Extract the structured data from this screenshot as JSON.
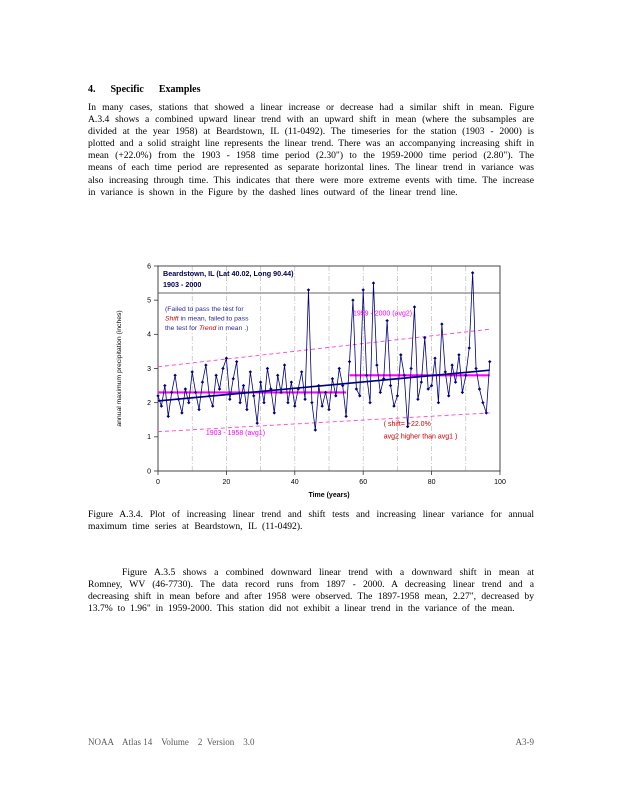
{
  "page": {
    "heading": "4.      Specific      Examples",
    "para1": "In many cases, stations that showed a linear increase or decrease had a similar shift in mean.  Figure A.3.4 shows a combined upward linear trend with an upward shift in mean (where the subsamples are divided at the year 1958) at Beardstown, IL (11-0492).  The timeseries for the station (1903 - 2000) is plotted and a solid straight line represents the linear trend.  There was an accompanying increasing shift in mean (+22.0%) from the 1903 - 1958 time period (2.30\") to the 1959-2000 time period (2.80\").  The means of each time period are represented as separate horizontal lines.  The linear trend in variance was also increasing through time.  This indicates that there were more extreme events with time.  The increase in variance is shown in the Figure by the dashed lines outward of the linear trend line.",
    "caption": "Figure A.3.4.  Plot of increasing linear trend and shift tests and increasing linear variance for annual maximum time series at Beardstown, IL (11-0492).",
    "para2": "Figure A.3.5 shows a combined downward linear trend with a downward shift in mean at Romney, WV (46-7730).  The data record runs from 1897 - 2000.  A decreasing linear trend and a decreasing shift in mean before and after 1958 were observed.  The 1897-1958 mean, 2.27\", decreased by 13.7% to 1.96\" in 1959-2000.  This station did not exhibit a linear trend in the variance of the mean.",
    "footer_left": "NOAA    Atlas 14    Volume    2  Version    3.0",
    "footer_right": "A3-9"
  },
  "chart_data": {
    "type": "line",
    "title": "Beardstown, IL  (Lat  40.02,  Long  90.44)",
    "subtitle": "1903 - 2000",
    "xlabel": "Time  (years)",
    "ylabel": "annual  maximum   precipitation   (inches)",
    "xlim": [
      0,
      100
    ],
    "ylim": [
      0,
      6
    ],
    "x_ticks": [
      0,
      20,
      40,
      60,
      80,
      100
    ],
    "y_ticks": [
      0,
      1,
      2,
      3,
      4,
      5,
      6
    ],
    "gridlines_x": [
      10,
      20,
      30,
      40,
      50,
      60,
      70,
      80,
      90
    ],
    "x_start": 0,
    "x_start_year": 1903,
    "series_values": [
      2.2,
      1.9,
      2.5,
      1.6,
      2.3,
      2.8,
      2.1,
      1.7,
      2.4,
      2.0,
      2.9,
      2.3,
      1.8,
      2.6,
      3.1,
      2.2,
      1.9,
      2.8,
      2.4,
      3.0,
      3.3,
      2.1,
      2.7,
      3.2,
      2.0,
      2.5,
      1.8,
      2.9,
      2.2,
      1.4,
      2.6,
      2.0,
      3.0,
      2.4,
      1.7,
      2.8,
      2.3,
      3.1,
      2.0,
      2.6,
      1.9,
      2.4,
      2.9,
      2.1,
      5.3,
      2.0,
      1.2,
      2.5,
      1.9,
      2.3,
      1.8,
      2.7,
      2.2,
      3.0,
      2.5,
      1.6,
      3.2,
      5.0,
      2.4,
      2.2,
      5.3,
      2.8,
      2.0,
      5.5,
      3.1,
      2.3,
      2.7,
      4.4,
      2.5,
      1.9,
      2.2,
      3.4,
      2.8,
      1.3,
      3.0,
      4.8,
      2.1,
      2.6,
      3.9,
      2.4,
      2.5,
      3.3,
      2.0,
      4.3,
      2.9,
      2.2,
      3.1,
      2.6,
      3.4,
      2.3,
      2.8,
      3.6,
      5.8,
      3.0,
      2.4,
      2.0,
      1.7,
      3.2
    ],
    "trend": {
      "x": [
        0,
        97
      ],
      "y": [
        2.05,
        2.95
      ]
    },
    "means": [
      {
        "label": "avg1",
        "x": [
          0,
          55
        ],
        "y": 2.3
      },
      {
        "label": "avg2",
        "x": [
          56,
          97
        ],
        "y": 2.8
      }
    ],
    "variance_band": {
      "upper": {
        "x": [
          0,
          97
        ],
        "y": [
          3.05,
          4.15
        ]
      },
      "lower": {
        "x": [
          0,
          97
        ],
        "y": [
          1.15,
          1.7
        ]
      }
    },
    "note": [
      [
        {
          "t": "(Failed  to  pass  the  test  for",
          "c": "note"
        }
      ],
      [
        {
          "t": "Shift",
          "c": "hl"
        },
        {
          "t": "   in  mean,  failed  to  pass",
          "c": "note"
        }
      ],
      [
        {
          "t": "the  test  for  ",
          "c": "note"
        },
        {
          "t": "Trend",
          "c": "hl"
        },
        {
          "t": "   in mean  .)",
          "c": "note"
        }
      ]
    ],
    "annotations": [
      {
        "text": "1959  -  2000  (avg2)",
        "x": 57,
        "y": 4.55,
        "color": "magenta"
      },
      {
        "text": "1903  -  1958  (avg1)",
        "x": 14,
        "y": 1.05,
        "color": "magenta"
      },
      {
        "text": "(  shift=   +22.0%",
        "x": 66,
        "y": 1.32,
        "color": "red"
      },
      {
        "text": "avg2  higher  than  avg1  )",
        "x": 66,
        "y": 0.95,
        "color": "red"
      }
    ],
    "colors": {
      "series": "#000080",
      "trend": "#000080",
      "mean": "#ff00ff",
      "variance": "#ff44cc",
      "note": "#2b2ba0",
      "highlight": "#cc0000",
      "grid": "#b0b0b0",
      "axis": "#333333",
      "title": "#000050"
    },
    "legend_position": "none",
    "grid": "vertical-dashdot"
  }
}
